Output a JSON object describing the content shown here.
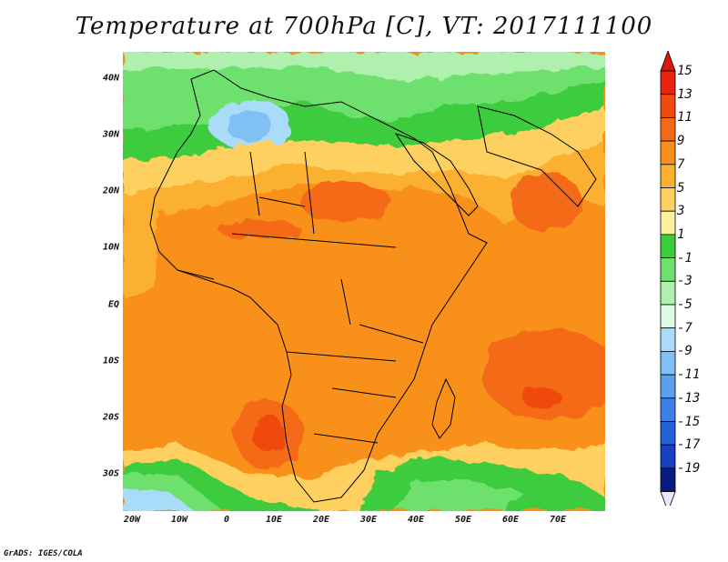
{
  "title": "Temperature at 700hPa [C], VT: 2017111100",
  "credit": "GrADS: IGES/COLA",
  "lat_labels": [
    "40N",
    "30N",
    "20N",
    "10N",
    "EQ",
    "10S",
    "20S",
    "30S"
  ],
  "lon_labels": [
    "20W",
    "10W",
    "0",
    "10E",
    "20E",
    "30E",
    "40E",
    "50E",
    "60E",
    "70E"
  ],
  "colorbar": {
    "labels": [
      "15",
      "13",
      "11",
      "9",
      "7",
      "5",
      "3",
      "1",
      "-1",
      "-3",
      "-5",
      "-7",
      "-9",
      "-11",
      "-13",
      "-15",
      "-17",
      "-19"
    ],
    "colors": [
      "#e8230f",
      "#f04a10",
      "#f46a12",
      "#f8901a",
      "#fbb030",
      "#fdd060",
      "#fff0a0",
      "#3ccc3c",
      "#6ee06e",
      "#aff0af",
      "#e0fae8",
      "#a8dcf8",
      "#80c0f4",
      "#5aa0ee",
      "#3c80e6",
      "#2460d8",
      "#1640c0",
      "#0a1a80"
    ]
  },
  "map": {
    "lat_range": [
      -36,
      45
    ],
    "lon_range": [
      -22,
      80
    ]
  }
}
